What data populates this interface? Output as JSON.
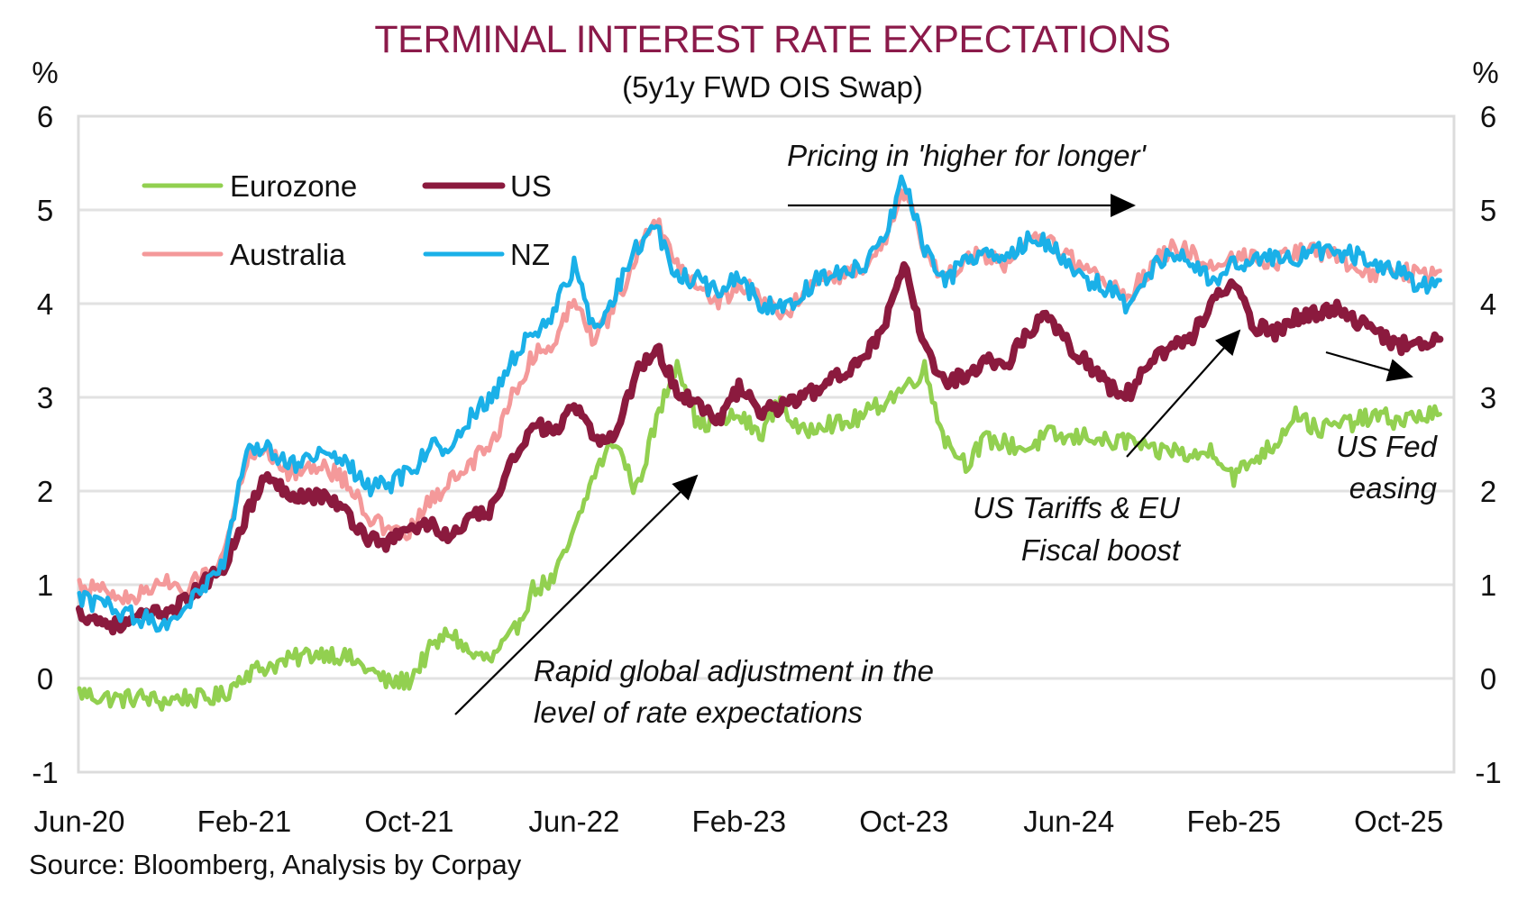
{
  "chart_data": {
    "type": "line",
    "title": "TERMINAL INTEREST RATE EXPECTATIONS",
    "subtitle": "(5y1y FWD OIS Swap)",
    "ylabel_left": "%",
    "ylabel_right": "%",
    "xlabel": "",
    "ylim": [
      -1,
      6
    ],
    "yticks": [
      "-1",
      "0",
      "1",
      "2",
      "3",
      "4",
      "5",
      "6"
    ],
    "ytick_values": [
      -1,
      0,
      1,
      2,
      3,
      4,
      5,
      6
    ],
    "xticks": [
      "Jun-20",
      "Feb-21",
      "Oct-21",
      "Jun-22",
      "Feb-23",
      "Oct-23",
      "Jun-24",
      "Feb-25",
      "Oct-25"
    ],
    "xtick_month_index": [
      0,
      8,
      16,
      24,
      32,
      40,
      48,
      56,
      64
    ],
    "x_start": "Jun-20",
    "x_end": "Oct-25",
    "x_frequency": "monthly",
    "x_range_months": [
      0,
      66.8
    ],
    "grid": "horizontal",
    "legend_position": "top-left",
    "source": "Source: Bloomberg, Analysis by Corpay",
    "series": [
      {
        "name": "Eurozone",
        "color": "#92d050",
        "values": [
          -0.15,
          -0.2,
          -0.22,
          -0.2,
          -0.25,
          -0.2,
          -0.22,
          -0.18,
          0.05,
          0.12,
          0.18,
          0.25,
          0.28,
          0.22,
          0.1,
          -0.05,
          -0.02,
          0.3,
          0.5,
          0.25,
          0.2,
          0.45,
          0.95,
          1.05,
          1.55,
          2.2,
          2.55,
          2.0,
          2.75,
          3.4,
          2.7,
          2.75,
          2.8,
          2.6,
          2.95,
          2.6,
          2.75,
          2.7,
          2.8,
          2.95,
          3.1,
          3.3,
          2.55,
          2.3,
          2.55,
          2.5,
          2.45,
          2.6,
          2.55,
          2.6,
          2.5,
          2.55,
          2.4,
          2.45,
          2.35,
          2.45,
          2.15,
          2.35,
          2.5,
          2.85,
          2.65,
          2.7,
          2.75,
          2.8,
          2.75,
          2.8,
          2.82
        ]
      },
      {
        "name": "US",
        "color": "#8b1a3e",
        "values": [
          0.7,
          0.62,
          0.55,
          0.65,
          0.7,
          0.8,
          1.0,
          1.2,
          1.7,
          2.15,
          2.0,
          1.95,
          1.95,
          1.75,
          1.5,
          1.45,
          1.6,
          1.65,
          1.5,
          1.7,
          1.8,
          2.3,
          2.75,
          2.6,
          2.9,
          2.55,
          2.6,
          3.25,
          3.55,
          3.05,
          2.95,
          2.75,
          3.1,
          2.85,
          2.9,
          3.0,
          3.1,
          3.25,
          3.45,
          3.7,
          4.4,
          3.55,
          3.15,
          3.25,
          3.4,
          3.35,
          3.7,
          3.9,
          3.55,
          3.35,
          3.1,
          3.05,
          3.4,
          3.55,
          3.65,
          4.05,
          4.2,
          3.75,
          3.7,
          3.85,
          3.9,
          3.95,
          3.8,
          3.7,
          3.55,
          3.6,
          3.62
        ]
      },
      {
        "name": "Australia",
        "color": "#f4999a",
        "values": [
          1.0,
          0.95,
          0.85,
          0.9,
          1.05,
          0.9,
          1.1,
          1.3,
          2.3,
          2.5,
          2.2,
          2.25,
          2.25,
          2.1,
          1.75,
          1.55,
          1.55,
          1.9,
          2.1,
          2.3,
          2.5,
          3.0,
          3.45,
          3.55,
          4.1,
          3.6,
          4.0,
          4.5,
          4.9,
          4.4,
          4.2,
          4.0,
          4.2,
          4.1,
          3.85,
          4.05,
          4.3,
          4.3,
          4.35,
          4.6,
          5.2,
          4.55,
          4.25,
          4.5,
          4.5,
          4.4,
          4.65,
          4.7,
          4.5,
          4.35,
          4.2,
          4.1,
          4.4,
          4.6,
          4.55,
          4.4,
          4.5,
          4.5,
          4.45,
          4.55,
          4.55,
          4.5,
          4.4,
          4.3,
          4.35,
          4.3,
          4.35
        ]
      },
      {
        "name": "NZ",
        "color": "#1ab0e8",
        "values": [
          0.85,
          0.8,
          0.7,
          0.65,
          0.55,
          0.75,
          0.95,
          1.2,
          2.4,
          2.45,
          2.3,
          2.3,
          2.4,
          2.3,
          2.05,
          2.05,
          2.2,
          2.45,
          2.5,
          2.8,
          3.0,
          3.4,
          3.7,
          3.9,
          4.4,
          3.7,
          4.1,
          4.6,
          4.8,
          4.3,
          4.25,
          4.1,
          4.3,
          4.0,
          3.95,
          4.1,
          4.3,
          4.3,
          4.4,
          4.65,
          5.35,
          4.6,
          4.2,
          4.5,
          4.55,
          4.45,
          4.7,
          4.65,
          4.45,
          4.25,
          4.15,
          3.95,
          4.35,
          4.55,
          4.45,
          4.2,
          4.45,
          4.45,
          4.5,
          4.5,
          4.55,
          4.55,
          4.5,
          4.4,
          4.35,
          4.2,
          4.25
        ]
      }
    ],
    "annotations": [
      {
        "text": "Pricing in 'higher for longer'",
        "arrow": "horizontal-right"
      },
      {
        "text_lines": [
          "Rapid global adjustment in the",
          "level of rate expectations"
        ],
        "arrow": "up-right"
      },
      {
        "text_lines": [
          "US Tariffs & EU",
          "Fiscal boost"
        ],
        "arrow": "up-right"
      },
      {
        "text_lines": [
          "US Fed",
          "easing"
        ],
        "arrow": "down-right"
      }
    ]
  }
}
